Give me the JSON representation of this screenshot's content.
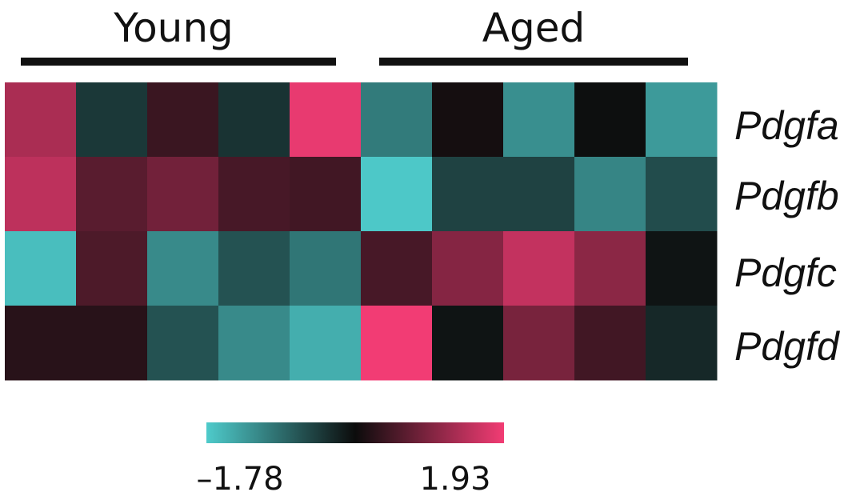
{
  "chart_data": {
    "type": "heatmap",
    "groups": [
      {
        "label": "Young",
        "columns": [
          0,
          1,
          2,
          3,
          4
        ]
      },
      {
        "label": "Aged",
        "columns": [
          5,
          6,
          7,
          8,
          9
        ]
      }
    ],
    "rows": [
      "Pdgfa",
      "Pdgfb",
      "Pdgfc",
      "Pdgfd"
    ],
    "values": [
      [
        1.35,
        -0.35,
        0.45,
        -0.3,
        1.85,
        -1.0,
        0.15,
        -1.2,
        0.05,
        -1.3
      ],
      [
        1.5,
        0.7,
        0.9,
        0.55,
        0.5,
        -1.75,
        -0.45,
        -0.45,
        -1.1,
        -0.55
      ],
      [
        -1.65,
        0.6,
        -1.15,
        -0.6,
        -0.95,
        0.55,
        1.05,
        1.55,
        1.1,
        0.0
      ],
      [
        0.3,
        0.3,
        -0.6,
        -1.15,
        -1.5,
        1.93,
        0.0,
        0.95,
        0.5,
        -0.2
      ]
    ],
    "color_scale": {
      "min": -1.78,
      "max": 1.93,
      "min_label": "–1.78",
      "max_label": "1.93",
      "colors": [
        "#4ecbcb",
        "#0c0c0c",
        "#f23c74"
      ]
    }
  }
}
